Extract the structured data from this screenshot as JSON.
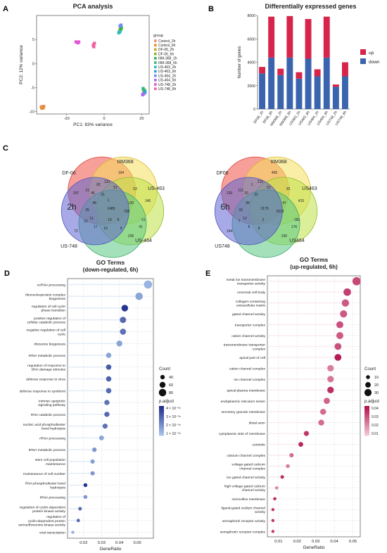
{
  "panels": {
    "A": "A",
    "B": "B",
    "C": "C",
    "D": "D",
    "E": "E"
  },
  "colors": {
    "up": "#d6244a",
    "down": "#3a64ad",
    "d_low": "#a7c3ea",
    "d_high": "#1f2d8c",
    "e_low": "#f2c6d5",
    "e_high": "#b3124f"
  },
  "chart_data": [
    {
      "panel": "A",
      "type": "scatter",
      "title": "PCA analysis",
      "xlabel": "PC1: 83% variance",
      "ylabel": "PC2: 12% variance",
      "xlim": [
        -36,
        24
      ],
      "ylim": [
        -10.5,
        10
      ],
      "xticks": [
        -20,
        0,
        20
      ],
      "yticks": [
        -10,
        -5,
        0,
        5
      ],
      "legend_title": "group",
      "series": [
        {
          "name": "Control_2h",
          "color": "#f28b72",
          "points": [
            [
              -33.5,
              -9
            ],
            [
              -32.8,
              -9.3
            ],
            [
              -32.2,
              -8.9
            ]
          ]
        },
        {
          "name": "Control_6h",
          "color": "#e0922b",
          "points": [
            [
              -33.2,
              -9.3
            ],
            [
              -32.4,
              -9.1
            ]
          ]
        },
        {
          "name": "DF-06_2h",
          "color": "#c9a52a",
          "points": [
            [
              8.2,
              6.8
            ],
            [
              8.6,
              7.2
            ]
          ]
        },
        {
          "name": "DF-06_6h",
          "color": "#8fb02c",
          "points": [
            [
              21,
              -5.5
            ],
            [
              21.5,
              -5.8
            ]
          ]
        },
        {
          "name": "IIIM-368_2h",
          "color": "#38b449",
          "points": [
            [
              8.8,
              7.0
            ],
            [
              9.2,
              7.4
            ]
          ]
        },
        {
          "name": "IIIM-368_6h",
          "color": "#2fb585",
          "points": [
            [
              20.8,
              -5.2
            ],
            [
              21.6,
              -5.6
            ]
          ]
        },
        {
          "name": "US-463_2h",
          "color": "#2ebcb8",
          "points": [
            [
              7.8,
              6.4
            ],
            [
              8.4,
              6.6
            ]
          ]
        },
        {
          "name": "US-463_6h",
          "color": "#2aa6de",
          "points": [
            [
              21.2,
              -6.2
            ],
            [
              21.8,
              -6.0
            ]
          ]
        },
        {
          "name": "US-464_2h",
          "color": "#6b8cf1",
          "points": [
            [
              8.5,
              7.8
            ],
            [
              9.0,
              8.0
            ]
          ]
        },
        {
          "name": "US-464_6h",
          "color": "#a46cf0",
          "points": [
            [
              20.5,
              -6.5
            ],
            [
              21.0,
              -6.3
            ]
          ]
        },
        {
          "name": "US-748_2h",
          "color": "#e455d6",
          "points": [
            [
              -15,
              4.5
            ],
            [
              -13.5,
              4.5
            ],
            [
              -14,
              4.3
            ]
          ]
        },
        {
          "name": "US-748_6h",
          "color": "#f25f9f",
          "points": [
            [
              -5.8,
              3.8
            ],
            [
              -5.2,
              4.2
            ],
            [
              -5.5,
              3.5
            ]
          ]
        }
      ]
    },
    {
      "panel": "B",
      "type": "bar",
      "title": "Differentially expressed genes",
      "xlabel": "",
      "ylabel": "Number of genes",
      "ylim": [
        0,
        8000
      ],
      "yticks": [
        0,
        2000,
        4000,
        6000,
        8000
      ],
      "categories": [
        "DF06_2h",
        "DF06_6h",
        "IIIM368_2h",
        "IIIM368_6h",
        "US463_2h",
        "US463_6h",
        "US464_2h",
        "US464_6h",
        "US748_2h",
        "US748_6h"
      ],
      "series": [
        {
          "name": "down",
          "values": [
            3050,
            4400,
            2900,
            4400,
            2600,
            4300,
            2800,
            4400,
            1900,
            2800
          ]
        },
        {
          "name": "up",
          "values": [
            550,
            3500,
            550,
            3550,
            550,
            3400,
            600,
            3500,
            200,
            1200
          ]
        }
      ],
      "legend": [
        "up",
        "down"
      ],
      "legend_placement": "right"
    },
    {
      "panel": "C",
      "type": "venn",
      "diagrams": [
        {
          "center_label": "2h",
          "sets": [
            "DF-06",
            "IIIM368",
            "US-463",
            "US-464",
            "US-748"
          ],
          "region_counts": [
            297,
            194,
            146,
            235,
            72,
            133,
            53,
            51,
            41,
            12,
            1480,
            738,
            48,
            46,
            35,
            21,
            31,
            82,
            51,
            120,
            10,
            21,
            17,
            16,
            9,
            8,
            1
          ]
        },
        {
          "center_label": "6h",
          "sets": [
            "DF06",
            "IIIM368",
            "US463",
            "US464",
            "US748"
          ],
          "region_counts": [
            239,
            405,
            415,
            230,
            144,
            215,
            81,
            180,
            176,
            12,
            3179,
            2918,
            96,
            20,
            33,
            111,
            32,
            1,
            51,
            47,
            8,
            7,
            5,
            2
          ]
        }
      ]
    },
    {
      "panel": "D",
      "type": "scatter",
      "title": "GO Terms",
      "subtitle": "(down-regulated, 6h)",
      "xlabel": "GeneRatio",
      "xlim": [
        0.011,
        0.059
      ],
      "xticks": [
        0.02,
        0.03,
        0.04,
        0.05
      ],
      "legend_count_title": "Count",
      "count_breaks": [
        40,
        60,
        80
      ],
      "legend_p_title": "p.adjust",
      "p_breaks": [
        "4 × 10⁻⁰⁸",
        "3 × 10⁻⁰⁸",
        "2 × 10⁻⁰⁸",
        "1 × 10⁻⁰⁸"
      ],
      "terms": [
        {
          "label": [
            "ncRNA processing"
          ],
          "ratio": 0.056,
          "count": 90,
          "p": 0.1
        },
        {
          "label": [
            "ribonucleoprotein complex",
            "biogenesis"
          ],
          "ratio": 0.051,
          "count": 80,
          "p": 0.2
        },
        {
          "label": [
            "regulation of cell cycle",
            "phase transition"
          ],
          "ratio": 0.043,
          "count": 70,
          "p": 0.95
        },
        {
          "label": [
            "positive regulation of",
            "cellular catabolic process"
          ],
          "ratio": 0.042,
          "count": 65,
          "p": 0.6
        },
        {
          "label": [
            "negative regulation of cell",
            "cycle"
          ],
          "ratio": 0.042,
          "count": 62,
          "p": 0.55
        },
        {
          "label": [
            "ribosome biogenesis"
          ],
          "ratio": 0.04,
          "count": 60,
          "p": 0.2
        },
        {
          "label": [
            "rRNA metabolic process"
          ],
          "ratio": 0.034,
          "count": 52,
          "p": 0.2
        },
        {
          "label": [
            "regulation of response to",
            "DNA damage stimulus"
          ],
          "ratio": 0.034,
          "count": 52,
          "p": 0.7
        },
        {
          "label": [
            "defense response to virus"
          ],
          "ratio": 0.034,
          "count": 52,
          "p": 0.65
        },
        {
          "label": [
            "defense response to symbiont"
          ],
          "ratio": 0.034,
          "count": 52,
          "p": 0.6
        },
        {
          "label": [
            "intrinsic apoptotic",
            "signaling pathway"
          ],
          "ratio": 0.033,
          "count": 50,
          "p": 0.55
        },
        {
          "label": [
            "RNA catabolic process"
          ],
          "ratio": 0.033,
          "count": 50,
          "p": 0.6
        },
        {
          "label": [
            "nucleic acid phosphodiester",
            "bond hydrolysis"
          ],
          "ratio": 0.032,
          "count": 48,
          "p": 0.55
        },
        {
          "label": [
            "rRNA processing"
          ],
          "ratio": 0.03,
          "count": 45,
          "p": 0.2
        },
        {
          "label": [
            "tRNA metabolic process"
          ],
          "ratio": 0.026,
          "count": 40,
          "p": 0.3
        },
        {
          "label": [
            "stem cell population",
            "maintenance"
          ],
          "ratio": 0.025,
          "count": 38,
          "p": 0.25
        },
        {
          "label": [
            "maintenance of cell number"
          ],
          "ratio": 0.025,
          "count": 38,
          "p": 0.3
        },
        {
          "label": [
            "RNA phosphodiester bond",
            "hydrolysis"
          ],
          "ratio": 0.021,
          "count": 32,
          "p": 0.95
        },
        {
          "label": [
            "tRNA processing"
          ],
          "ratio": 0.021,
          "count": 32,
          "p": 0.3
        },
        {
          "label": [
            "regulation of cyclin-dependent",
            "protein kinase activity"
          ],
          "ratio": 0.018,
          "count": 28,
          "p": 0.6
        },
        {
          "label": [
            "regulation of",
            "cyclin-dependent protein",
            "serine/threonine kinase activity"
          ],
          "ratio": 0.017,
          "count": 26,
          "p": 0.6
        },
        {
          "label": [
            "viral transcription"
          ],
          "ratio": 0.014,
          "count": 22,
          "p": 0.1
        }
      ]
    },
    {
      "panel": "E",
      "type": "scatter",
      "title": "GO Terms",
      "subtitle": "(up-regulated, 6h)",
      "xlabel": "GeneRatio",
      "xlim": [
        0.004,
        0.054
      ],
      "xticks": [
        0.01,
        0.02,
        0.03,
        0.04,
        0.05
      ],
      "legend_count_title": "Count",
      "count_breaks": [
        10,
        20,
        30
      ],
      "legend_p_title": "p.adjust",
      "p_breaks": [
        "0.04",
        "0.03",
        "0.02",
        "0.01"
      ],
      "terms": [
        {
          "label": [
            "metal ion transmembrane",
            "transporter activity"
          ],
          "ratio": 0.052,
          "count": 36,
          "p": 0.7
        },
        {
          "label": [
            "neuronal cell body"
          ],
          "ratio": 0.047,
          "count": 32,
          "p": 0.75
        },
        {
          "label": [
            "collagen-containing",
            "extracellular matrix"
          ],
          "ratio": 0.046,
          "count": 31,
          "p": 0.6
        },
        {
          "label": [
            "gated channel activity"
          ],
          "ratio": 0.045,
          "count": 30,
          "p": 0.6
        },
        {
          "label": [
            "transporter complex"
          ],
          "ratio": 0.043,
          "count": 29,
          "p": 0.65
        },
        {
          "label": [
            "cation channel activity"
          ],
          "ratio": 0.043,
          "count": 29,
          "p": 0.6
        },
        {
          "label": [
            "transmembrane transporter",
            "complex"
          ],
          "ratio": 0.042,
          "count": 28,
          "p": 0.65
        },
        {
          "label": [
            "apical part of cell"
          ],
          "ratio": 0.042,
          "count": 28,
          "p": 0.95
        },
        {
          "label": [
            "cation channel complex"
          ],
          "ratio": 0.038,
          "count": 26,
          "p": 0.4
        },
        {
          "label": [
            "ion channel complex"
          ],
          "ratio": 0.038,
          "count": 26,
          "p": 0.45
        },
        {
          "label": [
            "apical plasma membrane"
          ],
          "ratio": 0.038,
          "count": 26,
          "p": 0.85
        },
        {
          "label": [
            "endoplasmic reticulum lumen"
          ],
          "ratio": 0.036,
          "count": 24,
          "p": 0.55
        },
        {
          "label": [
            "secretory granule membrane"
          ],
          "ratio": 0.034,
          "count": 23,
          "p": 0.5
        },
        {
          "label": [
            "distal axon"
          ],
          "ratio": 0.033,
          "count": 22,
          "p": 0.5
        },
        {
          "label": [
            "cytoplasmic side of membrane"
          ],
          "ratio": 0.025,
          "count": 17,
          "p": 0.8
        },
        {
          "label": [
            "centriole"
          ],
          "ratio": 0.022,
          "count": 15,
          "p": 0.9
        },
        {
          "label": [
            "calcium channel complex"
          ],
          "ratio": 0.017,
          "count": 12,
          "p": 0.5
        },
        {
          "label": [
            "voltage-gated calcium",
            "channel complex"
          ],
          "ratio": 0.015,
          "count": 10,
          "p": 0.4
        },
        {
          "label": [
            "ion gated channel activity"
          ],
          "ratio": 0.012,
          "count": 8,
          "p": 0.85
        },
        {
          "label": [
            "high voltage-gated calcium",
            "channel activity"
          ],
          "ratio": 0.009,
          "count": 6,
          "p": 0.35
        },
        {
          "label": [
            "microvillus membrane"
          ],
          "ratio": 0.008,
          "count": 6,
          "p": 0.85
        },
        {
          "label": [
            "ligand-gated sodium channel",
            "activity"
          ],
          "ratio": 0.007,
          "count": 5,
          "p": 0.8
        },
        {
          "label": [
            "semaphorin receptor activity"
          ],
          "ratio": 0.007,
          "count": 5,
          "p": 0.8
        },
        {
          "label": [
            "semaphorin receptor complex"
          ],
          "ratio": 0.007,
          "count": 5,
          "p": 0.75
        }
      ]
    }
  ]
}
